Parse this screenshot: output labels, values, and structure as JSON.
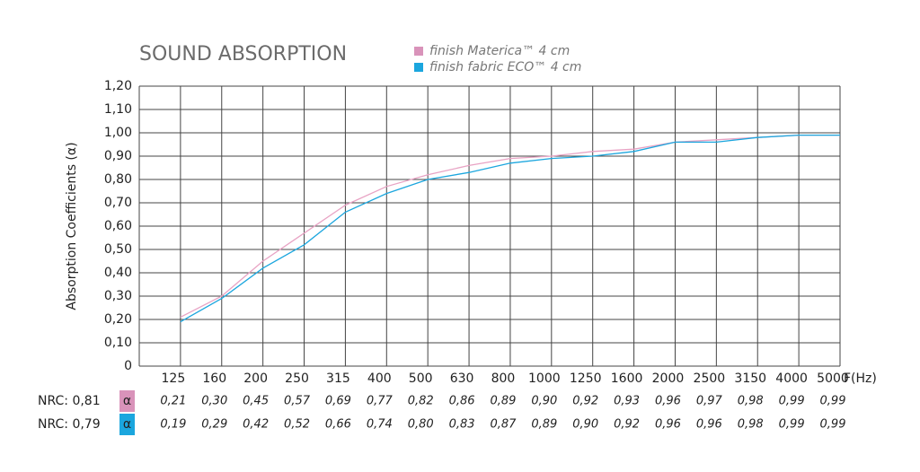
{
  "chart_data": {
    "type": "line",
    "title": "SOUND ABSORPTION",
    "y_label": "Absorption Coefficients (α)",
    "x_label": "F(Hz)",
    "categories": [
      "125",
      "160",
      "200",
      "250",
      "315",
      "400",
      "500",
      "630",
      "800",
      "1000",
      "1250",
      "1600",
      "2000",
      "2500",
      "3150",
      "4000",
      "5000"
    ],
    "series": [
      {
        "name": "finish Materica™ 4 cm",
        "color": "#e8a3c4",
        "box_color": "#d993ba",
        "symbol": "α",
        "nrc": "NRC: 0,81",
        "values": [
          0.21,
          0.3,
          0.45,
          0.57,
          0.69,
          0.77,
          0.82,
          0.86,
          0.89,
          0.9,
          0.92,
          0.93,
          0.96,
          0.97,
          0.98,
          0.99,
          0.99
        ],
        "value_labels": [
          "0,21",
          "0,30",
          "0,45",
          "0,57",
          "0,69",
          "0,77",
          "0,82",
          "0,86",
          "0,89",
          "0,90",
          "0,92",
          "0,93",
          "0,96",
          "0,97",
          "0,98",
          "0,99",
          "0,99"
        ]
      },
      {
        "name": "finish fabric ECO™ 4 cm",
        "color": "#1ba6de",
        "box_color": "#1ba6de",
        "symbol": "α",
        "nrc": "NRC: 0,79",
        "values": [
          0.19,
          0.29,
          0.42,
          0.52,
          0.66,
          0.74,
          0.8,
          0.83,
          0.87,
          0.89,
          0.9,
          0.92,
          0.96,
          0.96,
          0.98,
          0.99,
          0.99
        ],
        "value_labels": [
          "0,19",
          "0,29",
          "0,42",
          "0,52",
          "0,66",
          "0,74",
          "0,80",
          "0,83",
          "0,87",
          "0,89",
          "0,90",
          "0,92",
          "0,96",
          "0,96",
          "0,98",
          "0,99",
          "0,99"
        ]
      }
    ],
    "ylim": [
      0,
      1.2
    ],
    "yticks": [
      0,
      {
        "value": 0.1,
        "label": "0,10"
      },
      {
        "value": 0.2,
        "label": "0,20"
      },
      {
        "value": 0.3,
        "label": "0,30"
      },
      {
        "value": 0.4,
        "label": "0,40"
      },
      {
        "value": 0.5,
        "label": "0,50"
      },
      {
        "value": 0.6,
        "label": "0,60"
      },
      {
        "value": 0.7,
        "label": "0,70"
      },
      {
        "value": 0.8,
        "label": "0,80"
      },
      {
        "value": 0.9,
        "label": "0,90"
      },
      {
        "value": 1.0,
        "label": "1,00"
      },
      {
        "value": 1.1,
        "label": "1,10"
      },
      {
        "value": 1.2,
        "label": "1,20"
      }
    ],
    "grid": true
  }
}
